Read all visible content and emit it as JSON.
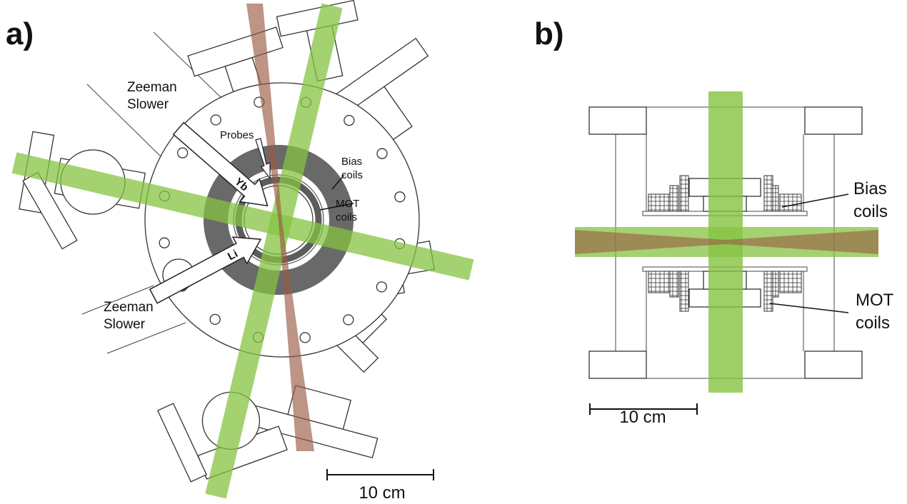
{
  "panel_a": {
    "label": "a)",
    "zeeman_slower_top": [
      "Zeeman",
      "Slower"
    ],
    "zeeman_slower_bottom": [
      "Zeeman",
      "Slower"
    ],
    "probes": "Probes",
    "bias_coils": [
      "Bias",
      "coils"
    ],
    "mot_coils": [
      "MOT",
      "coils"
    ],
    "yb_arrow": "Yb",
    "li_arrow": "Li",
    "scale_bar": "10 cm"
  },
  "panel_b": {
    "label": "b)",
    "bias_coils": [
      "Bias",
      "coils"
    ],
    "mot_coils": [
      "MOT",
      "coils"
    ],
    "scale_bar": "10 cm"
  }
}
